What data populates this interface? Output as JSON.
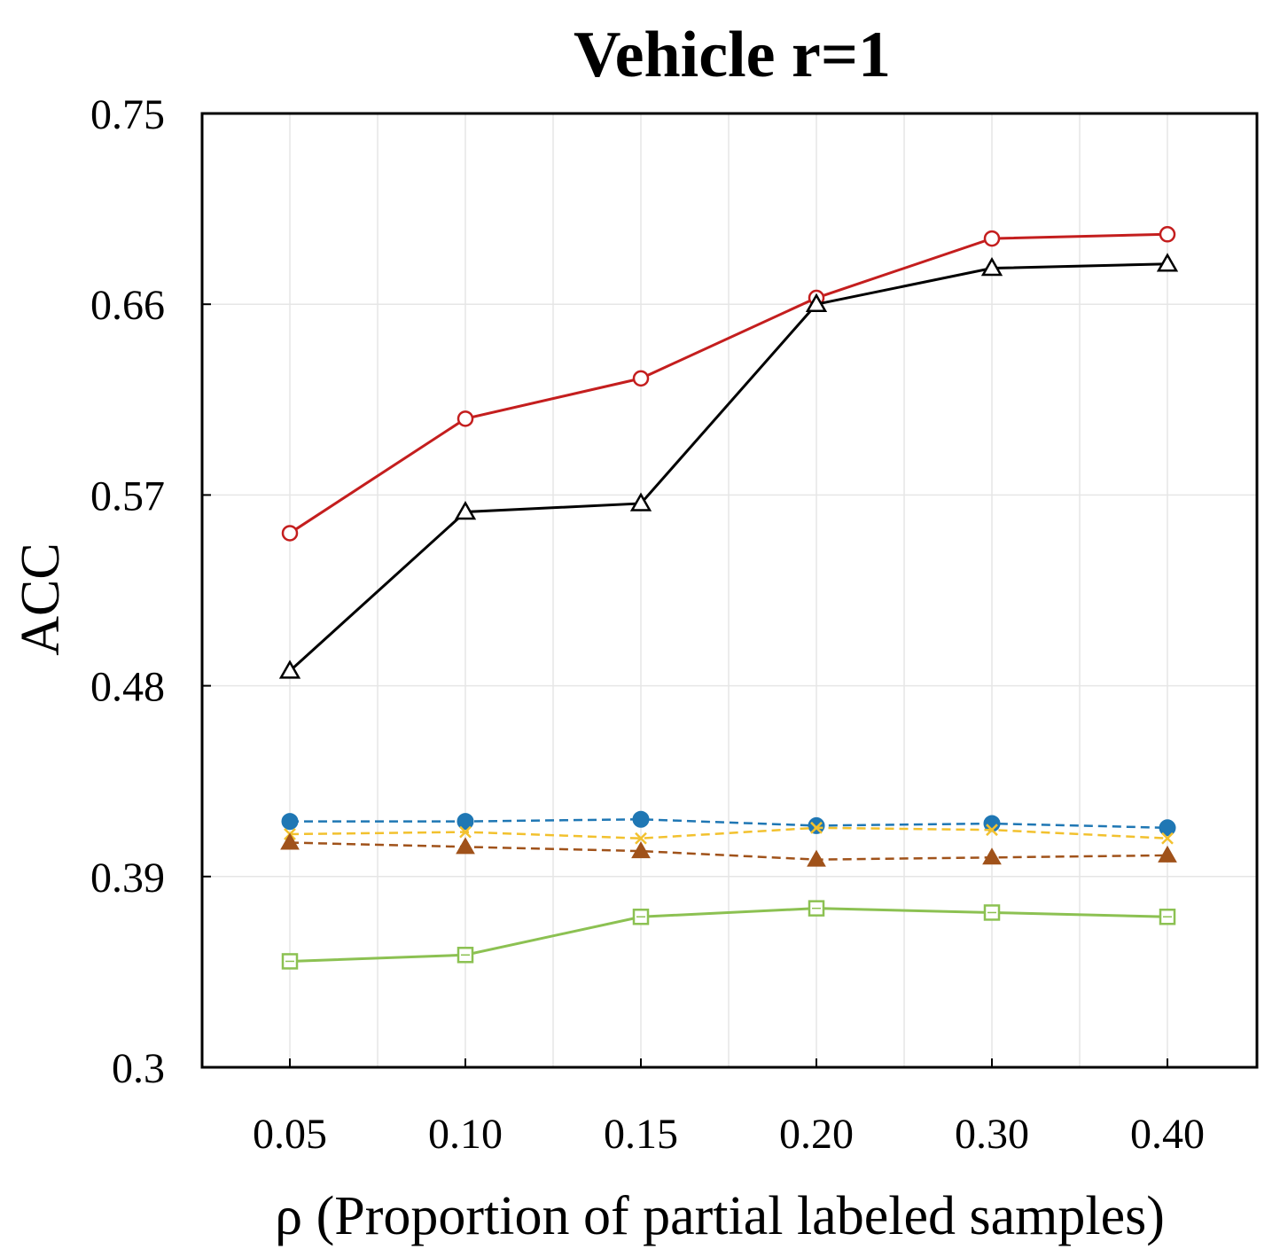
{
  "chart_data": {
    "type": "line",
    "title": "Vehicle r=1",
    "xlabel": "ρ (Proportion of partial labeled samples)",
    "ylabel": "ACC",
    "categories": [
      "0.05",
      "0.10",
      "0.15",
      "0.20",
      "0.30",
      "0.40"
    ],
    "ylim": [
      0.3,
      0.75
    ],
    "yticks": [
      "0.3",
      "0.39",
      "0.48",
      "0.57",
      "0.66",
      "0.75"
    ],
    "grid": true,
    "series": [
      {
        "name": "red-circle",
        "color": "#c41e1e",
        "marker": "open-circle",
        "dash": "solid",
        "values": [
          0.552,
          0.606,
          0.625,
          0.663,
          0.691,
          0.693
        ]
      },
      {
        "name": "black-triangle",
        "color": "#000000",
        "marker": "open-triangle",
        "dash": "solid",
        "values": [
          0.487,
          0.562,
          0.566,
          0.66,
          0.677,
          0.679
        ]
      },
      {
        "name": "blue-dot",
        "color": "#1f77b4",
        "marker": "filled-circle",
        "dash": "dashed",
        "values": [
          0.416,
          0.416,
          0.417,
          0.414,
          0.415,
          0.413
        ]
      },
      {
        "name": "yellow-x",
        "color": "#f2c12e",
        "marker": "x",
        "dash": "dashed",
        "values": [
          0.41,
          0.411,
          0.408,
          0.413,
          0.412,
          0.408
        ]
      },
      {
        "name": "brown-triangle",
        "color": "#a0521a",
        "marker": "filled-triangle",
        "dash": "dashed",
        "values": [
          0.406,
          0.404,
          0.402,
          0.398,
          0.399,
          0.4
        ]
      },
      {
        "name": "green-square",
        "color": "#8cc152",
        "marker": "open-square",
        "dash": "solid",
        "values": [
          0.35,
          0.353,
          0.371,
          0.375,
          0.373,
          0.371
        ]
      }
    ]
  }
}
